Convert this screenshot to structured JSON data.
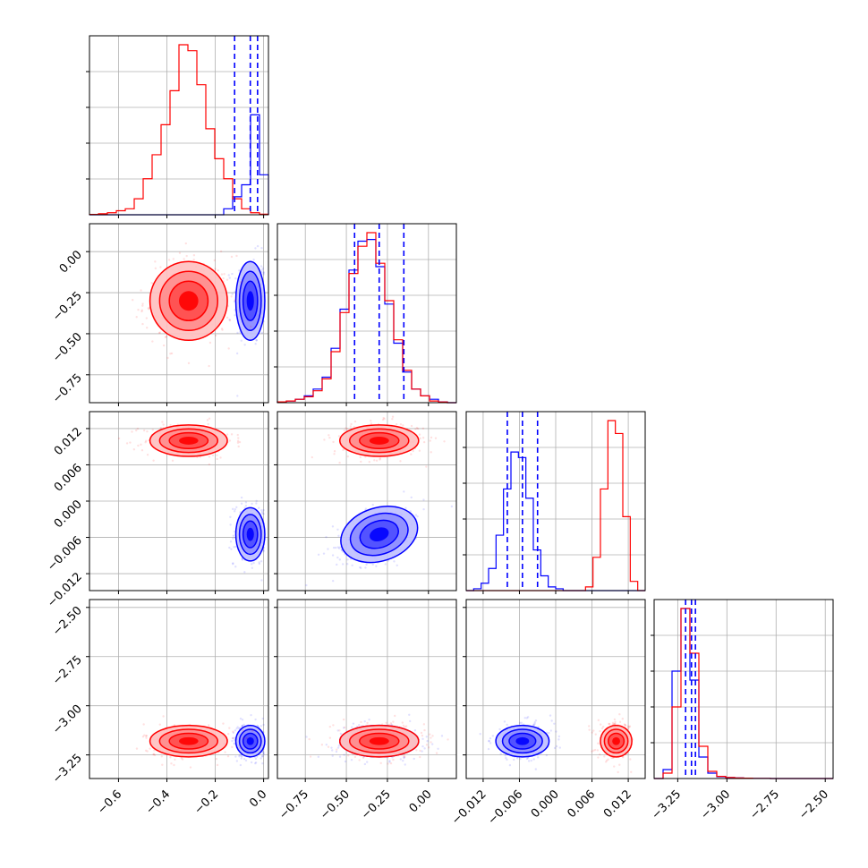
{
  "figure": {
    "kind": "corner-plot",
    "grid": true
  },
  "colors": {
    "series_a": "#0000ff",
    "series_b": "#ff0000",
    "grid": "#b0b0b0",
    "frame": "#000000"
  },
  "chart_data": {
    "type": "corner",
    "grid": true,
    "parameters": [
      {
        "id": "p0",
        "range": [
          -0.72,
          0.02
        ],
        "ticks": [
          -0.6,
          -0.4,
          -0.2,
          0.0
        ],
        "tick_labels": [
          "−0.6",
          "−0.4",
          "−0.2",
          "0.0"
        ]
      },
      {
        "id": "p1",
        "range": [
          -0.92,
          0.17
        ],
        "ticks": [
          -0.75,
          -0.5,
          -0.25,
          0.0
        ],
        "tick_labels": [
          "−0.75",
          "−0.50",
          "−0.25",
          "0.00"
        ]
      },
      {
        "id": "p2",
        "range": [
          -0.0148,
          0.0148
        ],
        "ticks": [
          -0.012,
          -0.006,
          0.0,
          0.006,
          0.012
        ],
        "tick_labels": [
          "−0.012",
          "−0.006",
          "0.000",
          "0.006",
          "0.012"
        ]
      },
      {
        "id": "p3",
        "range": [
          -3.37,
          -2.46
        ],
        "ticks": [
          -3.25,
          -3.0,
          -2.75,
          -2.5
        ],
        "tick_labels": [
          "−3.25",
          "−3.00",
          "−2.75",
          "−2.50"
        ]
      }
    ],
    "series": [
      {
        "name": "",
        "color": "#0000ff",
        "mean": [
          -0.055,
          -0.3,
          -0.0055,
          -3.18
        ],
        "std": [
          0.03,
          0.12,
          0.0022,
          0.04
        ],
        "quantiles": [
          [
            -0.12,
            -0.055,
            -0.025
          ],
          [
            -0.45,
            -0.3,
            -0.15
          ],
          [
            -0.008,
            -0.0055,
            -0.003
          ],
          [
            -3.21,
            -3.18,
            -3.16
          ]
        ]
      },
      {
        "name": "",
        "color": "#ff0000",
        "mean": [
          -0.31,
          -0.3,
          0.01,
          -3.18
        ],
        "std": [
          0.08,
          0.12,
          0.0013,
          0.04
        ]
      }
    ],
    "histograms": [
      {
        "param": "p0",
        "edges_range": [
          -0.72,
          0.02
        ],
        "bins": 20,
        "series_a": [
          0,
          0,
          0,
          0,
          0,
          0,
          0,
          0,
          0,
          0,
          0,
          0,
          0,
          0,
          0,
          0.03,
          0.09,
          0.15,
          0.5,
          0.2
        ],
        "series_b": [
          0.002,
          0.005,
          0.01,
          0.02,
          0.03,
          0.08,
          0.18,
          0.3,
          0.45,
          0.62,
          0.85,
          0.82,
          0.65,
          0.43,
          0.28,
          0.18,
          0.08,
          0.03,
          0.01,
          0.003
        ],
        "quantiles_a": [
          -0.12,
          -0.055,
          -0.025
        ]
      },
      {
        "param": "p1",
        "edges_range": [
          -0.92,
          0.17
        ],
        "bins": 20,
        "series_a": [
          0.005,
          0.01,
          0.02,
          0.04,
          0.08,
          0.15,
          0.32,
          0.55,
          0.78,
          0.95,
          0.96,
          0.8,
          0.58,
          0.35,
          0.18,
          0.08,
          0.04,
          0.02,
          0.005,
          0
        ],
        "series_b": [
          0.005,
          0.01,
          0.02,
          0.035,
          0.07,
          0.14,
          0.3,
          0.53,
          0.76,
          0.92,
          1.0,
          0.82,
          0.6,
          0.37,
          0.19,
          0.08,
          0.04,
          0.01,
          0.004,
          0
        ],
        "quantiles_a": [
          -0.45,
          -0.3,
          -0.15
        ]
      },
      {
        "param": "p2",
        "edges_range": [
          -0.0148,
          0.0148
        ],
        "bins": 24,
        "series_a": [
          0,
          0.01,
          0.04,
          0.12,
          0.3,
          0.55,
          0.75,
          0.72,
          0.5,
          0.22,
          0.08,
          0.02,
          0.01,
          0,
          0,
          0,
          0,
          0,
          0,
          0,
          0,
          0,
          0,
          0
        ],
        "series_b": [
          0,
          0,
          0,
          0,
          0,
          0,
          0,
          0,
          0,
          0,
          0,
          0,
          0,
          0,
          0,
          0,
          0.02,
          0.18,
          0.55,
          0.92,
          0.85,
          0.4,
          0.05,
          0
        ],
        "quantiles_a": [
          -0.008,
          -0.0055,
          -0.003
        ]
      },
      {
        "param": "p3",
        "edges_range": [
          -3.37,
          -2.46
        ],
        "bins": 20,
        "series_a": [
          0,
          0.05,
          0.6,
          0.95,
          0.55,
          0.12,
          0.03,
          0.01,
          0.005,
          0.003,
          0.002,
          0.001,
          0.0005,
          0,
          0,
          0,
          0,
          0,
          0,
          0
        ],
        "series_b": [
          0,
          0.03,
          0.4,
          0.95,
          0.7,
          0.18,
          0.04,
          0.012,
          0.006,
          0.003,
          0.002,
          0.001,
          0.0005,
          0,
          0,
          0,
          0,
          0,
          0,
          0
        ],
        "quantiles_a": [
          -3.21,
          -3.18,
          -3.16
        ]
      }
    ]
  }
}
